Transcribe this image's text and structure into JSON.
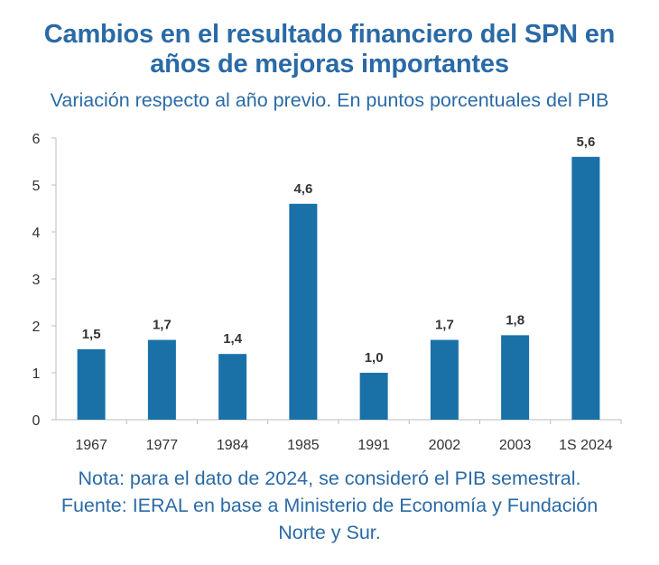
{
  "title_line1": "Cambios en el resultado financiero del SPN en",
  "title_line2": "años de mejoras importantes",
  "subtitle": "Variación respecto al año previo. En puntos porcentuales del PIB",
  "note": "Nota: para el dato de 2024, se consideró el PIB semestral.",
  "source_line1": "Fuente: IERAL en base a Ministerio de Economía y Fundación",
  "source_line2": "Norte y Sur.",
  "colors": {
    "bar": "#1a71a8",
    "title": "#2a6aa6",
    "axis": "#bdbdbd"
  },
  "chart_data": {
    "type": "bar",
    "categories": [
      "1967",
      "1977",
      "1984",
      "1985",
      "1991",
      "2002",
      "2003",
      "1S 2024"
    ],
    "values": [
      1.5,
      1.7,
      1.4,
      4.6,
      1.0,
      1.7,
      1.8,
      5.6
    ],
    "value_labels": [
      "1,5",
      "1,7",
      "1,4",
      "4,6",
      "1,0",
      "1,7",
      "1,8",
      "5,6"
    ],
    "yticks": [
      "0",
      "1",
      "2",
      "3",
      "4",
      "5",
      "6"
    ],
    "ylim": [
      0,
      6
    ],
    "grid": false,
    "xlabel": "",
    "ylabel": ""
  }
}
